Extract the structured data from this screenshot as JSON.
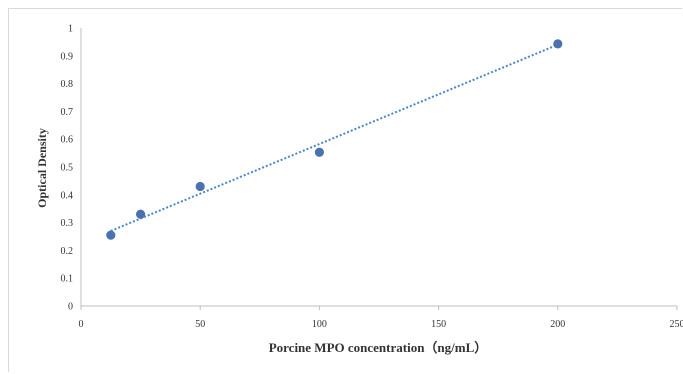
{
  "chart_data": {
    "type": "scatter",
    "title": "",
    "xlabel": "Porcine MPO concentration（ng/mL）",
    "ylabel": "Optical Density",
    "xlim": [
      0,
      250
    ],
    "ylim": [
      0,
      1
    ],
    "xticks": [
      "0",
      "50",
      "100",
      "150",
      "200",
      "250"
    ],
    "yticks": [
      "0",
      "0.1",
      "0.2",
      "0.3",
      "0.4",
      "0.5",
      "0.6",
      "0.7",
      "0.8",
      "0.9",
      "1"
    ],
    "grid": false,
    "legend": "none",
    "colors": {
      "marker": "#4a72b0",
      "trendline": "#4a86c8",
      "axis": "#bfbfbf"
    },
    "series": [
      {
        "x": [
          12.5,
          25,
          50,
          100,
          200
        ],
        "y": [
          0.255,
          0.33,
          0.43,
          0.553,
          0.943
        ]
      }
    ],
    "trendline": {
      "type": "linear",
      "style": "dotted",
      "x": [
        12.5,
        200
      ],
      "y": [
        0.27,
        0.94
      ]
    }
  }
}
